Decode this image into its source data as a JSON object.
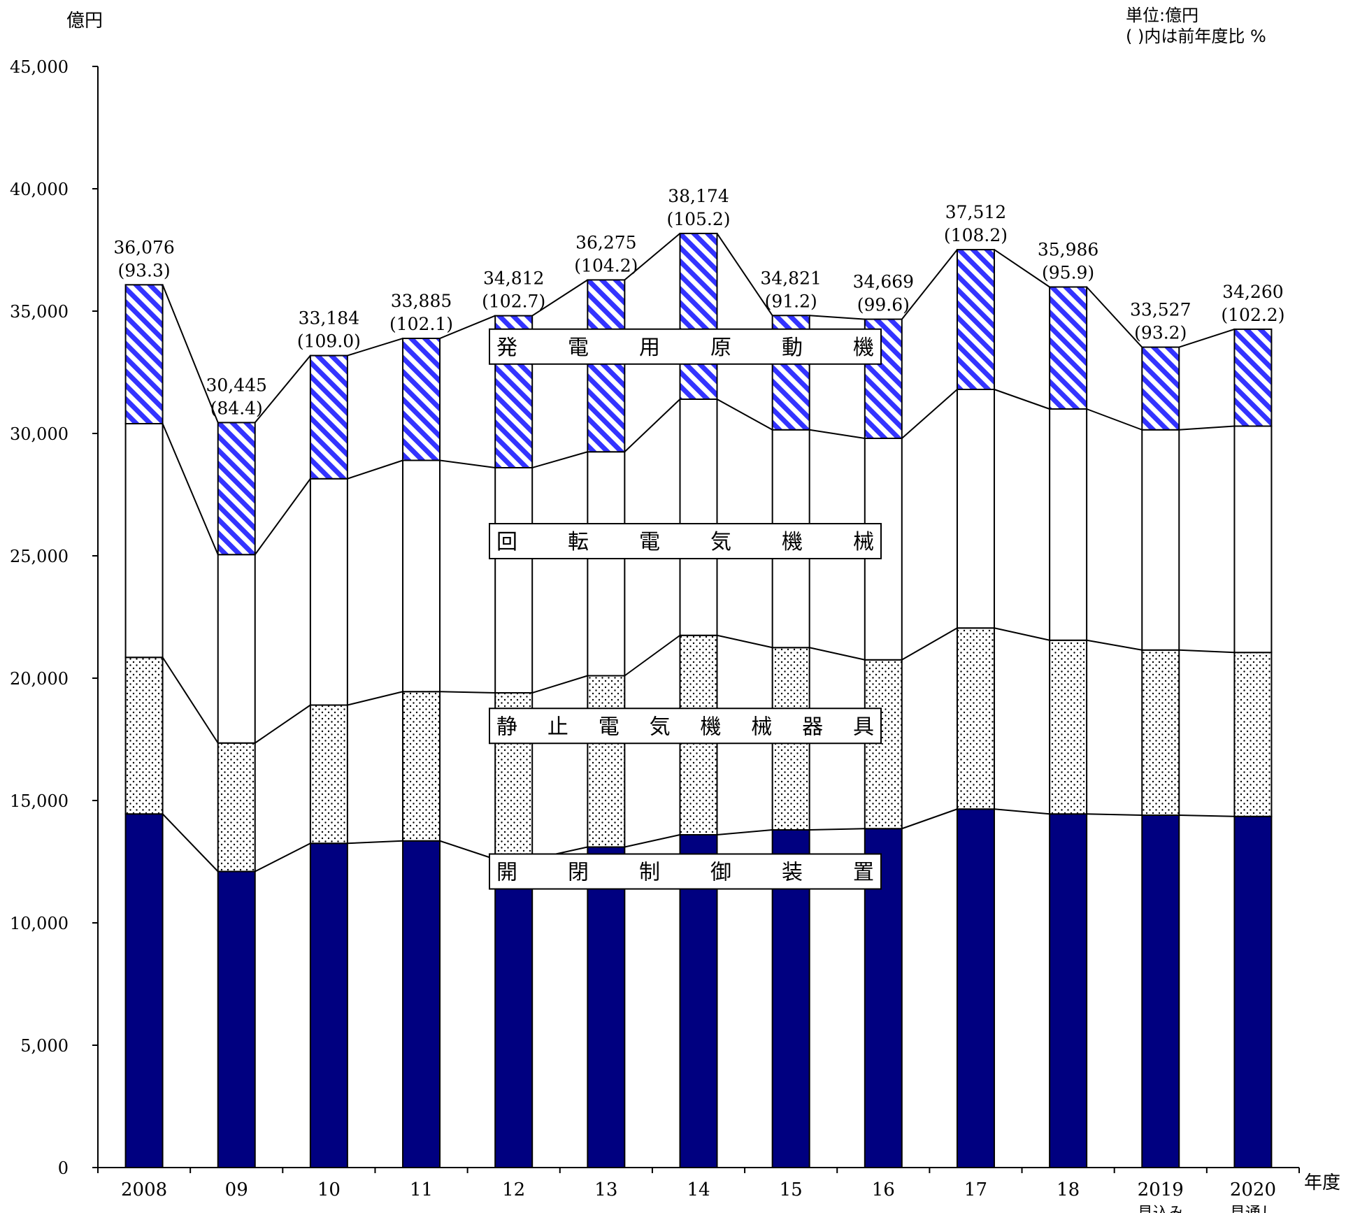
{
  "chart_data": {
    "type": "bar",
    "stacked": true,
    "y_unit_label": "億円",
    "x_unit_label": "年度",
    "unit_note": "単位:億円",
    "ratio_note": "( )内は前年度比 %",
    "ylim": [
      0,
      45000
    ],
    "yticks": [
      0,
      5000,
      10000,
      15000,
      20000,
      25000,
      30000,
      35000,
      40000,
      45000
    ],
    "ytick_labels": [
      "0",
      "5,000",
      "10,000",
      "15,000",
      "20,000",
      "25,000",
      "30,000",
      "35,000",
      "40,000",
      "45,000"
    ],
    "categories": [
      "2008",
      "09",
      "10",
      "11",
      "12",
      "13",
      "14",
      "15",
      "16",
      "17",
      "18",
      "2019",
      "2020"
    ],
    "category_sublabels": [
      "",
      "",
      "",
      "",
      "",
      "",
      "",
      "",
      "",
      "",
      "",
      "見込み",
      "見通し"
    ],
    "series": [
      {
        "name": "開閉制御装置",
        "label_display": "開　閉　制　御　装　置",
        "color": "#000080",
        "pattern": "solid",
        "values": [
          14450,
          12100,
          13250,
          13350,
          12600,
          13100,
          13600,
          13800,
          13850,
          14650,
          14450,
          14400,
          14350
        ]
      },
      {
        "name": "静止電気機械器具",
        "label_display": "静　止　電　気　機　械　器　具",
        "color": "#ffffff",
        "pattern": "dots",
        "values": [
          6400,
          5250,
          5650,
          6100,
          6800,
          7000,
          8150,
          7450,
          6900,
          7400,
          7100,
          6750,
          6700
        ]
      },
      {
        "name": "回転電気機械",
        "label_display": "回　転　電　気　機　械",
        "color": "#ffffff",
        "pattern": "white",
        "values": [
          9550,
          7700,
          9250,
          9450,
          9200,
          9150,
          9650,
          8900,
          9050,
          9750,
          9450,
          9000,
          9250
        ]
      },
      {
        "name": "発電用原動機",
        "label_display": "発　電　用　原　動　機",
        "color": "#3333ff",
        "pattern": "diagonal",
        "values": [
          5676,
          5395,
          5034,
          4985,
          6212,
          7025,
          6774,
          4671,
          4869,
          5712,
          4986,
          3377,
          3960
        ]
      }
    ],
    "totals": [
      36076,
      30445,
      33184,
      33885,
      34812,
      36275,
      38174,
      34821,
      34669,
      37512,
      35986,
      33527,
      34260
    ],
    "total_labels": [
      "36,076",
      "30,445",
      "33,184",
      "33,885",
      "34,812",
      "36,275",
      "38,174",
      "34,821",
      "34,669",
      "37,512",
      "35,986",
      "33,527",
      "34,260"
    ],
    "yoy_labels": [
      "(93.3)",
      "(84.4)",
      "(109.0)",
      "(102.1)",
      "(102.7)",
      "(104.2)",
      "(105.2)",
      "(91.2)",
      "(99.6)",
      "(108.2)",
      "(95.9)",
      "(93.2)",
      "(102.2)"
    ]
  }
}
